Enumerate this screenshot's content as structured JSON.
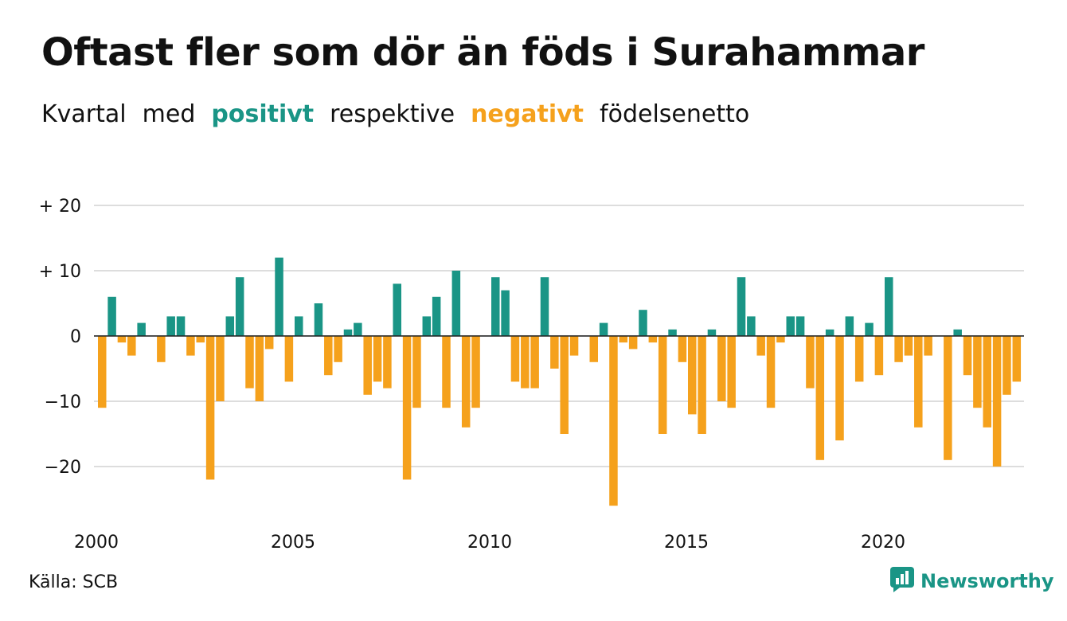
{
  "header": {
    "title": "Oftast fler som dör än föds i Surahammar",
    "subtitle_parts": [
      "Kvartal",
      "med",
      "positivt",
      "respektive",
      "negativt",
      "födelsenetto"
    ]
  },
  "colors": {
    "positive": "#1a9586",
    "negative": "#f5a11c",
    "grid": "#dddddd",
    "text": "#111111"
  },
  "footer": {
    "source": "Källa: SCB",
    "brand": "Newsworthy",
    "brand_icon": "newsworthy-logo-icon"
  },
  "chart_data": {
    "type": "bar",
    "title": "Oftast fler som dör än föds i Surahammar",
    "xlabel": "",
    "ylabel": "",
    "x_start_year": 2000,
    "periods_per_year": 4,
    "y_ticks": [
      20,
      10,
      0,
      -10,
      -20
    ],
    "y_tick_labels": [
      "+ 20",
      "+ 10",
      "0",
      "−10",
      "−20"
    ],
    "x_tick_labels": [
      "2000",
      "2005",
      "2010",
      "2015",
      "2020"
    ],
    "ylim": [
      -27,
      20
    ],
    "grid": true,
    "values": [
      -11,
      6,
      -1,
      -3,
      2,
      0,
      -4,
      3,
      3,
      -3,
      -1,
      -22,
      -10,
      3,
      9,
      -8,
      -10,
      -2,
      12,
      -7,
      3,
      0,
      5,
      -6,
      -4,
      1,
      2,
      -9,
      -7,
      -8,
      8,
      -22,
      -11,
      3,
      6,
      -11,
      10,
      -14,
      -11,
      0,
      9,
      7,
      -7,
      -8,
      -8,
      9,
      -5,
      -15,
      -3,
      0,
      -4,
      2,
      -26,
      -1,
      -2,
      4,
      -1,
      -15,
      1,
      -4,
      -12,
      -15,
      1,
      -10,
      -11,
      9,
      3,
      -3,
      -11,
      -1,
      3,
      3,
      -8,
      -19,
      1,
      -16,
      3,
      -7,
      2,
      -6,
      9,
      -4,
      -3,
      -14,
      -3,
      0,
      -19,
      1,
      -6,
      -11,
      -14,
      -20,
      -9,
      -7
    ]
  }
}
